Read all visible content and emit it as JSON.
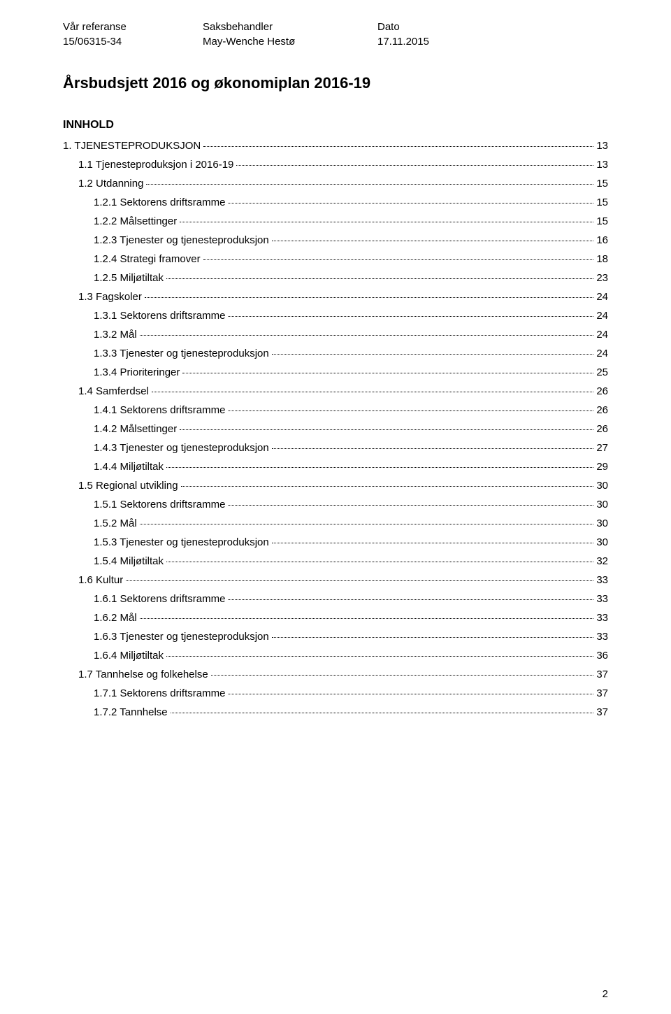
{
  "header": {
    "labels": {
      "reference": "Vår referanse",
      "handler": "Saksbehandler",
      "date": "Dato"
    },
    "values": {
      "reference": "15/06315-34",
      "handler": "May-Wenche Hestø",
      "date": "17.11.2015"
    }
  },
  "title": "Årsbudsjett 2016 og økonomiplan 2016-19",
  "tocTitle": "INNHOLD",
  "toc": [
    {
      "level": 0,
      "label": "1. TJENESTEPRODUKSJON",
      "page": "13"
    },
    {
      "level": 1,
      "label": "1.1 Tjenesteproduksjon i 2016-19",
      "page": "13"
    },
    {
      "level": 1,
      "label": "1.2 Utdanning",
      "page": "15"
    },
    {
      "level": 2,
      "label": "1.2.1 Sektorens driftsramme",
      "page": "15"
    },
    {
      "level": 2,
      "label": "1.2.2 Målsettinger",
      "page": "15"
    },
    {
      "level": 2,
      "label": "1.2.3 Tjenester og tjenesteproduksjon",
      "page": "16"
    },
    {
      "level": 2,
      "label": "1.2.4 Strategi framover",
      "page": "18"
    },
    {
      "level": 2,
      "label": "1.2.5 Miljøtiltak",
      "page": "23"
    },
    {
      "level": 1,
      "label": "1.3 Fagskoler",
      "page": "24"
    },
    {
      "level": 2,
      "label": "1.3.1 Sektorens driftsramme",
      "page": "24"
    },
    {
      "level": 2,
      "label": "1.3.2 Mål",
      "page": "24"
    },
    {
      "level": 2,
      "label": "1.3.3 Tjenester og tjenesteproduksjon",
      "page": "24"
    },
    {
      "level": 2,
      "label": "1.3.4 Prioriteringer",
      "page": "25"
    },
    {
      "level": 1,
      "label": "1.4 Samferdsel",
      "page": "26"
    },
    {
      "level": 2,
      "label": "1.4.1 Sektorens driftsramme",
      "page": "26"
    },
    {
      "level": 2,
      "label": "1.4.2 Målsettinger",
      "page": "26"
    },
    {
      "level": 2,
      "label": "1.4.3 Tjenester og tjenesteproduksjon",
      "page": "27"
    },
    {
      "level": 2,
      "label": "1.4.4 Miljøtiltak",
      "page": "29"
    },
    {
      "level": 1,
      "label": "1.5 Regional utvikling",
      "page": "30"
    },
    {
      "level": 2,
      "label": "1.5.1 Sektorens driftsramme",
      "page": "30"
    },
    {
      "level": 2,
      "label": "1.5.2 Mål",
      "page": "30"
    },
    {
      "level": 2,
      "label": "1.5.3 Tjenester og tjenesteproduksjon",
      "page": "30"
    },
    {
      "level": 2,
      "label": "1.5.4 Miljøtiltak",
      "page": "32"
    },
    {
      "level": 1,
      "label": "1.6 Kultur",
      "page": "33"
    },
    {
      "level": 2,
      "label": "1.6.1 Sektorens driftsramme",
      "page": "33"
    },
    {
      "level": 2,
      "label": "1.6.2 Mål",
      "page": "33"
    },
    {
      "level": 2,
      "label": "1.6.3 Tjenester og tjenesteproduksjon",
      "page": "33"
    },
    {
      "level": 2,
      "label": "1.6.4 Miljøtiltak",
      "page": "36"
    },
    {
      "level": 1,
      "label": "1.7 Tannhelse og folkehelse",
      "page": "37"
    },
    {
      "level": 2,
      "label": "1.7.1 Sektorens driftsramme",
      "page": "37"
    },
    {
      "level": 2,
      "label": "1.7.2 Tannhelse",
      "page": "37"
    }
  ],
  "pageNumber": "2"
}
